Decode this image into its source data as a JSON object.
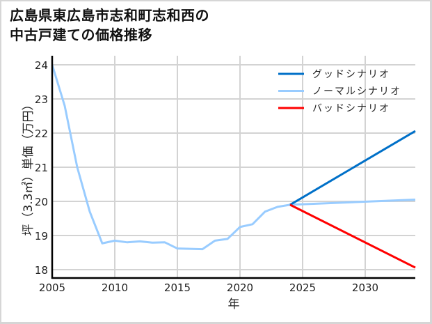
{
  "title_line1": "広島県東広島市志和町志和西の",
  "title_line2": "中古戸建ての価格推移",
  "chart_data": {
    "type": "line",
    "title": "広島県東広島市志和町志和西の中古戸建ての価格推移",
    "xlabel": "年",
    "ylabel": "坪（3.3㎡）単価（万円）",
    "xlim": [
      2005,
      2034
    ],
    "ylim": [
      17.8,
      24.3
    ],
    "xticks": [
      2005,
      2010,
      2015,
      2020,
      2025,
      2030
    ],
    "yticks": [
      18,
      19,
      20,
      21,
      22,
      23,
      24
    ],
    "grid": true,
    "legend_position": "upper right",
    "series": [
      {
        "name": "グッドシナリオ",
        "color": "#0070c8",
        "x": [
          2024,
          2034
        ],
        "values": [
          19.9,
          22.06
        ]
      },
      {
        "name": "ノーマルシナリオ",
        "color": "#99ccff",
        "x": [
          2005,
          2006,
          2007,
          2008,
          2009,
          2010,
          2011,
          2012,
          2013,
          2014,
          2015,
          2016,
          2017,
          2018,
          2019,
          2020,
          2021,
          2022,
          2023,
          2024,
          2034
        ],
        "values": [
          24.0,
          22.8,
          21.0,
          19.7,
          18.77,
          18.85,
          18.8,
          18.83,
          18.79,
          18.8,
          18.62,
          18.61,
          18.6,
          18.85,
          18.9,
          19.25,
          19.33,
          19.7,
          19.84,
          19.9,
          20.05
        ]
      },
      {
        "name": "バッドシナリオ",
        "color": "#ff0000",
        "x": [
          2024,
          2034
        ],
        "values": [
          19.9,
          18.06
        ]
      }
    ]
  }
}
